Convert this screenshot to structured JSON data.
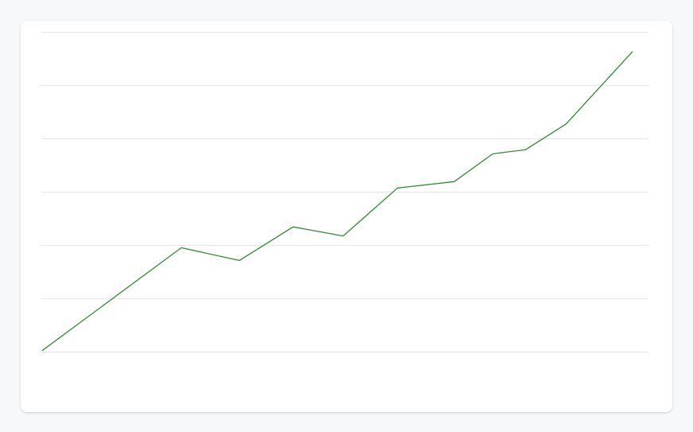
{
  "chart_data": {
    "type": "line",
    "title": "",
    "xlabel": "",
    "ylabel": "",
    "grid": true,
    "legend": "none",
    "ylim": [
      0,
      6
    ],
    "gridlines": [
      0,
      1,
      2,
      3,
      4,
      5,
      6
    ],
    "series": [
      {
        "color": "#2e8b2e",
        "points": [
          {
            "x": 0,
            "y": 0.02
          },
          {
            "x": 2.28,
            "y": 1.95
          },
          {
            "x": 3.23,
            "y": 1.71
          },
          {
            "x": 4.11,
            "y": 2.34
          },
          {
            "x": 4.93,
            "y": 2.17
          },
          {
            "x": 5.82,
            "y": 3.07
          },
          {
            "x": 6.75,
            "y": 3.19
          },
          {
            "x": 7.38,
            "y": 3.71
          },
          {
            "x": 7.92,
            "y": 3.79
          },
          {
            "x": 8.58,
            "y": 4.27
          },
          {
            "x": 9.67,
            "y": 5.63
          }
        ]
      }
    ],
    "xlim": [
      0,
      9.67
    ]
  }
}
